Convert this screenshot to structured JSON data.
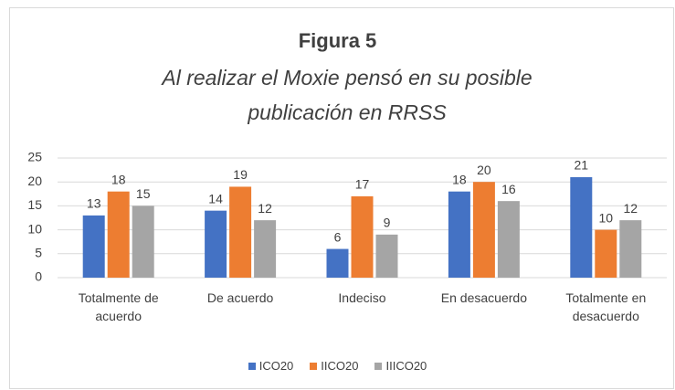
{
  "chart_data": {
    "type": "bar",
    "title": "Figura 5",
    "subtitle": "Al realizar el Moxie pensó en su posible publicación en RRSS",
    "categories": [
      "Totalmente de acuerdo",
      "De acuerdo",
      "Indeciso",
      "En desacuerdo",
      "Totalmente en desacuerdo"
    ],
    "series": [
      {
        "name": "ICO20",
        "color": "#4472c4",
        "values": [
          13,
          14,
          6,
          18,
          21
        ]
      },
      {
        "name": "IICO20",
        "color": "#ed7d31",
        "values": [
          18,
          19,
          17,
          20,
          10
        ]
      },
      {
        "name": "IIICO20",
        "color": "#a5a5a5",
        "values": [
          15,
          12,
          9,
          16,
          12
        ]
      }
    ],
    "ylim": [
      0,
      25
    ],
    "yticks": [
      0,
      5,
      10,
      15,
      20,
      25
    ],
    "grid": true,
    "legend": "bottom"
  }
}
